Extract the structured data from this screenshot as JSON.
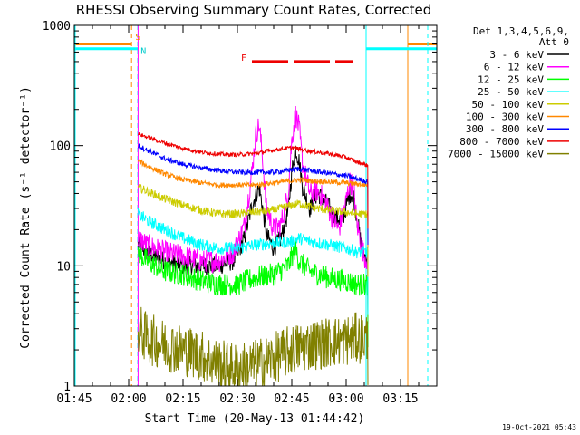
{
  "chart_data": {
    "type": "line",
    "title": "RHESSI Observing Summary Count Rates, Corrected",
    "xlabel": "Start Time (20-May-13 01:44:42)",
    "ylabel": "Corrected Count Rate (s⁻¹ detector⁻¹)",
    "yscale": "log",
    "ylim": [
      1,
      1000
    ],
    "xlim_minutes_after_0145": [
      0,
      100
    ],
    "x_ticks": [
      "01:45",
      "02:00",
      "02:15",
      "02:30",
      "02:45",
      "03:00",
      "03:15"
    ],
    "x_tick_minutes": [
      0,
      15,
      30,
      45,
      60,
      75,
      90
    ],
    "y_ticks": [
      "1",
      "10",
      "100",
      "1000"
    ],
    "y_tick_values": [
      1,
      10,
      100,
      1000
    ],
    "legend_header": [
      "Det 1,3,4,5,6,9,",
      "Att 0"
    ],
    "legend_position": "right",
    "timestamp": "19-Oct-2021 05:43",
    "annotations": {
      "S": "S",
      "N": "N",
      "F": "F"
    },
    "flag_times_minutes": {
      "saa_start": 15.8,
      "night_start": 17.5,
      "night_end": 80.5,
      "saa_end": 92,
      "flare_start": 49,
      "flare_end": 77
    },
    "data_start_minute": 17.6,
    "data_end_minute": 81,
    "series": [
      {
        "name": "3 - 6 keV",
        "color": "#000000",
        "points": [
          [
            17.6,
            15
          ],
          [
            20,
            13
          ],
          [
            25,
            11
          ],
          [
            30,
            10
          ],
          [
            35,
            10
          ],
          [
            40,
            10
          ],
          [
            44,
            11
          ],
          [
            47,
            17
          ],
          [
            49,
            32
          ],
          [
            51,
            45
          ],
          [
            52,
            30
          ],
          [
            53,
            18
          ],
          [
            55,
            14
          ],
          [
            57,
            17
          ],
          [
            59,
            28
          ],
          [
            60,
            60
          ],
          [
            61,
            95
          ],
          [
            62,
            75
          ],
          [
            63,
            45
          ],
          [
            65,
            30
          ],
          [
            67,
            40
          ],
          [
            68,
            38
          ],
          [
            70,
            32
          ],
          [
            72,
            25
          ],
          [
            74,
            24
          ],
          [
            76,
            40
          ],
          [
            77,
            38
          ],
          [
            78,
            25
          ],
          [
            79,
            16
          ],
          [
            80,
            12
          ],
          [
            81,
            12
          ]
        ]
      },
      {
        "name": "6 - 12 keV",
        "color": "#ff00ff",
        "points": [
          [
            17.6,
            17
          ],
          [
            20,
            15
          ],
          [
            25,
            13
          ],
          [
            30,
            12
          ],
          [
            35,
            11
          ],
          [
            40,
            11
          ],
          [
            44,
            13
          ],
          [
            47,
            22
          ],
          [
            49,
            60
          ],
          [
            50,
            120
          ],
          [
            51,
            150
          ],
          [
            52,
            75
          ],
          [
            53,
            30
          ],
          [
            55,
            20
          ],
          [
            57,
            22
          ],
          [
            59,
            40
          ],
          [
            60,
            110
          ],
          [
            61,
            185
          ],
          [
            62,
            140
          ],
          [
            63,
            70
          ],
          [
            65,
            40
          ],
          [
            67,
            42
          ],
          [
            69,
            36
          ],
          [
            71,
            26
          ],
          [
            73,
            20
          ],
          [
            75,
            35
          ],
          [
            76,
            50
          ],
          [
            77,
            46
          ],
          [
            78,
            22
          ],
          [
            80,
            12
          ],
          [
            81,
            11
          ]
        ]
      },
      {
        "name": "12 - 25 keV",
        "color": "#00ff00",
        "points": [
          [
            17.6,
            13
          ],
          [
            20,
            11
          ],
          [
            25,
            9
          ],
          [
            30,
            8.5
          ],
          [
            35,
            7.5
          ],
          [
            40,
            7
          ],
          [
            45,
            7
          ],
          [
            50,
            8
          ],
          [
            55,
            8.5
          ],
          [
            59,
            10
          ],
          [
            61,
            14
          ],
          [
            62,
            11
          ],
          [
            65,
            9
          ],
          [
            70,
            8
          ],
          [
            75,
            7.5
          ],
          [
            78,
            7
          ],
          [
            81,
            7
          ]
        ]
      },
      {
        "name": "25 - 50 keV",
        "color": "#00ffff",
        "points": [
          [
            17.6,
            27
          ],
          [
            20,
            24
          ],
          [
            25,
            20
          ],
          [
            30,
            17
          ],
          [
            35,
            15
          ],
          [
            40,
            14
          ],
          [
            45,
            14
          ],
          [
            50,
            15
          ],
          [
            55,
            15.5
          ],
          [
            60,
            16
          ],
          [
            62,
            17
          ],
          [
            65,
            16
          ],
          [
            70,
            15
          ],
          [
            75,
            14
          ],
          [
            78,
            13
          ],
          [
            81,
            13
          ]
        ]
      },
      {
        "name": "50 - 100 keV",
        "color": "#cccc00",
        "points": [
          [
            17.6,
            45
          ],
          [
            20,
            42
          ],
          [
            25,
            36
          ],
          [
            30,
            32
          ],
          [
            35,
            29
          ],
          [
            40,
            27
          ],
          [
            45,
            27
          ],
          [
            50,
            28
          ],
          [
            55,
            29
          ],
          [
            60,
            32
          ],
          [
            62,
            33
          ],
          [
            65,
            31
          ],
          [
            70,
            29
          ],
          [
            75,
            28
          ],
          [
            78,
            27
          ],
          [
            81,
            27
          ]
        ]
      },
      {
        "name": "100 - 300 keV",
        "color": "#ff8800",
        "points": [
          [
            17.6,
            75
          ],
          [
            20,
            68
          ],
          [
            25,
            58
          ],
          [
            30,
            52
          ],
          [
            35,
            49
          ],
          [
            40,
            47
          ],
          [
            45,
            47
          ],
          [
            50,
            47
          ],
          [
            55,
            49
          ],
          [
            60,
            51
          ],
          [
            62,
            52
          ],
          [
            65,
            51
          ],
          [
            70,
            50
          ],
          [
            75,
            49
          ],
          [
            78,
            48
          ],
          [
            81,
            47
          ]
        ]
      },
      {
        "name": "300 - 800 keV",
        "color": "#0000ff",
        "points": [
          [
            17.6,
            100
          ],
          [
            20,
            92
          ],
          [
            25,
            78
          ],
          [
            30,
            70
          ],
          [
            35,
            65
          ],
          [
            40,
            62
          ],
          [
            45,
            60
          ],
          [
            50,
            60
          ],
          [
            55,
            60
          ],
          [
            60,
            63
          ],
          [
            62,
            64
          ],
          [
            65,
            62
          ],
          [
            70,
            59
          ],
          [
            75,
            56
          ],
          [
            78,
            53
          ],
          [
            81,
            50
          ]
        ]
      },
      {
        "name": "800 - 7000 keV",
        "color": "#ee0000",
        "points": [
          [
            17.6,
            125
          ],
          [
            20,
            118
          ],
          [
            25,
            105
          ],
          [
            30,
            95
          ],
          [
            35,
            88
          ],
          [
            40,
            85
          ],
          [
            45,
            84
          ],
          [
            50,
            86
          ],
          [
            55,
            92
          ],
          [
            60,
            96
          ],
          [
            62,
            94
          ],
          [
            65,
            90
          ],
          [
            70,
            86
          ],
          [
            75,
            80
          ],
          [
            78,
            73
          ],
          [
            81,
            68
          ]
        ]
      },
      {
        "name": "7000 - 15000 keV",
        "color": "#808000",
        "points": [
          [
            17.6,
            3
          ],
          [
            20,
            2.5
          ],
          [
            25,
            2.2
          ],
          [
            30,
            2
          ],
          [
            35,
            1.8
          ],
          [
            40,
            1.5
          ],
          [
            45,
            1.4
          ],
          [
            50,
            1.5
          ],
          [
            55,
            1.7
          ],
          [
            60,
            2
          ],
          [
            65,
            2.2
          ],
          [
            70,
            2.3
          ],
          [
            75,
            2.4
          ],
          [
            78,
            2.5
          ],
          [
            81,
            2.5
          ]
        ]
      }
    ]
  }
}
